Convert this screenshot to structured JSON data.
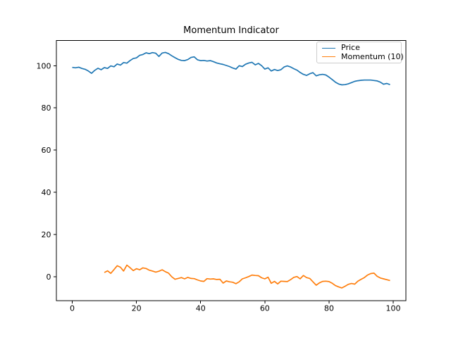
{
  "figure": {
    "background": "#ffffff"
  },
  "chart_data": {
    "type": "line",
    "title": "Momentum Indicator",
    "xlabel": "",
    "ylabel": "",
    "xlim": [
      -4.95,
      103.95
    ],
    "ylim": [
      -11.4,
      111.9
    ],
    "xticks": [
      0,
      20,
      40,
      60,
      80,
      100
    ],
    "yticks": [
      0,
      20,
      40,
      60,
      80,
      100
    ],
    "grid": false,
    "legend": {
      "position": "upper right",
      "border_color": "#cccccc",
      "background": "#ffffff"
    },
    "series": [
      {
        "name": "Price",
        "color": "#1f77b4",
        "x_start": 0,
        "x_step": 1,
        "values": [
          99.2,
          99.0,
          99.3,
          98.7,
          98.3,
          97.5,
          96.4,
          97.8,
          98.8,
          98.1,
          99.1,
          98.7,
          99.9,
          99.5,
          100.8,
          100.3,
          101.5,
          101.2,
          102.4,
          103.4,
          103.7,
          104.9,
          105.3,
          106.1,
          105.7,
          106.2,
          105.9,
          104.4,
          106.0,
          106.3,
          105.7,
          104.7,
          103.8,
          103.0,
          102.5,
          102.4,
          102.9,
          103.9,
          104.2,
          102.8,
          102.4,
          102.5,
          102.2,
          102.4,
          101.9,
          101.3,
          100.9,
          100.6,
          100.1,
          99.6,
          98.9,
          98.4,
          100.0,
          99.6,
          100.7,
          101.3,
          101.6,
          100.4,
          101.1,
          100.0,
          98.4,
          99.0,
          97.5,
          98.2,
          97.7,
          98.1,
          99.4,
          99.9,
          99.4,
          98.6,
          97.9,
          96.8,
          95.9,
          95.4,
          96.2,
          96.7,
          95.2,
          95.7,
          95.9,
          95.6,
          94.6,
          93.4,
          92.2,
          91.3,
          90.9,
          91.0,
          91.4,
          92.0,
          92.6,
          92.9,
          93.1,
          93.2,
          93.2,
          93.2,
          93.0,
          92.8,
          92.2,
          91.2,
          91.6,
          91.0
        ]
      },
      {
        "name": "Momentum (10)",
        "color": "#ff7f0e",
        "x_start": 10,
        "x_step": 1,
        "values": [
          2.0,
          2.8,
          1.6,
          3.4,
          5.2,
          4.5,
          2.7,
          5.5,
          4.3,
          2.9,
          3.8,
          3.3,
          4.2,
          3.9,
          3.1,
          2.7,
          2.2,
          2.6,
          3.3,
          2.4,
          1.7,
          0.0,
          -1.2,
          -0.8,
          -0.4,
          -1.0,
          -0.3,
          -0.8,
          -0.9,
          -1.5,
          -2.0,
          -2.2,
          -0.9,
          -1.1,
          -1.0,
          -1.3,
          -1.2,
          -3.0,
          -2.0,
          -2.4,
          -2.6,
          -3.3,
          -2.4,
          -1.0,
          -0.5,
          0.1,
          0.8,
          0.6,
          0.5,
          -0.5,
          -1.0,
          -0.2,
          -3.1,
          -2.2,
          -3.4,
          -2.1,
          -2.2,
          -2.3,
          -1.4,
          -0.3,
          0.1,
          -1.0,
          0.6,
          -0.4,
          -0.8,
          -2.4,
          -4.0,
          -2.9,
          -2.2,
          -2.1,
          -2.3,
          -3.1,
          -4.2,
          -4.8,
          -5.3,
          -4.5,
          -3.6,
          -3.2,
          -3.5,
          -2.1,
          -1.2,
          -0.4,
          0.8,
          1.5,
          1.7,
          0.2,
          -0.6,
          -1.0,
          -1.4,
          -1.8
        ]
      }
    ]
  }
}
